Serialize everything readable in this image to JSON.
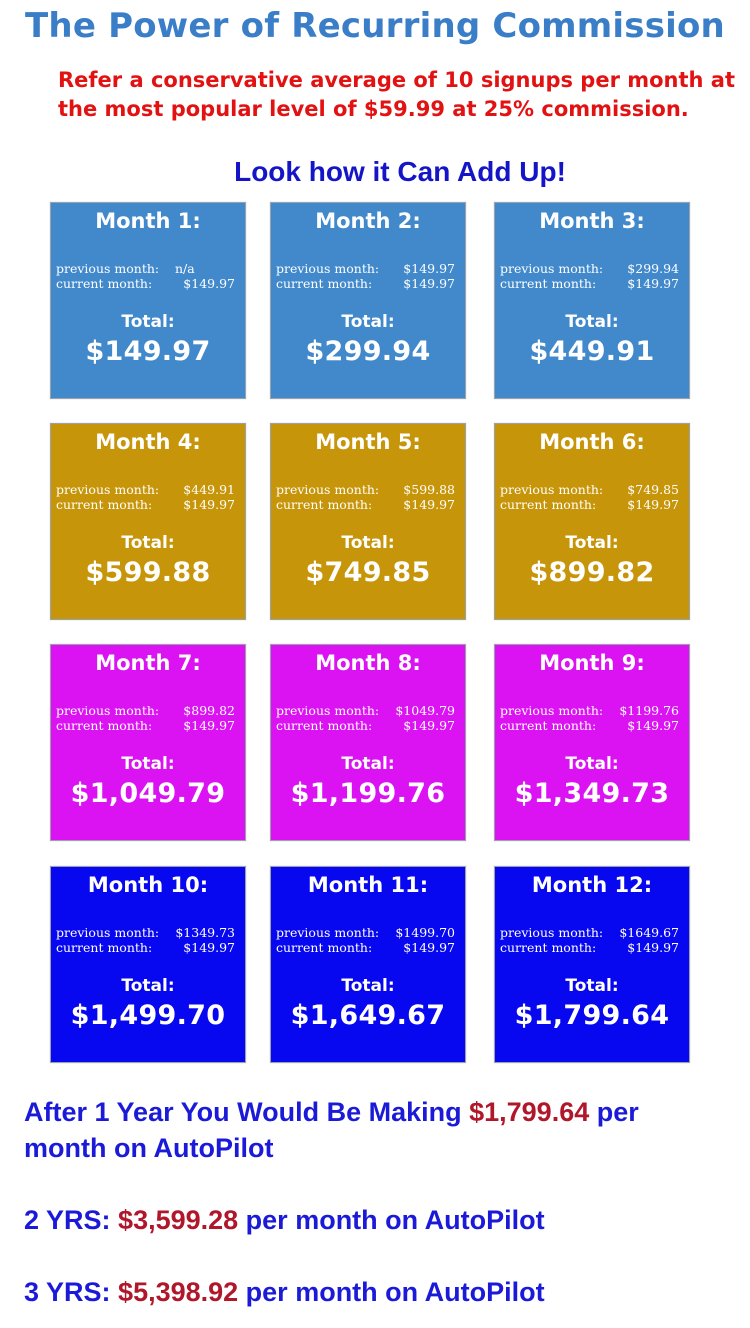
{
  "header": {
    "title": "The Power of Recurring Commission",
    "subtitle_line1": "Refer a conservative average of 10 signups per month at",
    "subtitle_line2": "the most popular level of $59.99 at 25% commission.",
    "tagline": "Look how it Can Add Up!"
  },
  "labels": {
    "previous": "previous month:",
    "current": "current month:",
    "total": "Total:"
  },
  "colors": {
    "row1": "#4289cc",
    "row2": "#c79509",
    "row3": "#db13f2",
    "row4": "#0808f0"
  },
  "months": [
    {
      "label": "Month 1:",
      "previous": "n/a",
      "current": "$149.97",
      "total": "$149.97"
    },
    {
      "label": "Month 2:",
      "previous": "$149.97",
      "current": "$149.97",
      "total": "$299.94"
    },
    {
      "label": "Month 3:",
      "previous": "$299.94",
      "current": "$149.97",
      "total": "$449.91"
    },
    {
      "label": "Month 4:",
      "previous": "$449.91",
      "current": "$149.97",
      "total": "$599.88"
    },
    {
      "label": "Month 5:",
      "previous": "$599.88",
      "current": "$149.97",
      "total": "$749.85"
    },
    {
      "label": "Month 6:",
      "previous": "$749.85",
      "current": "$149.97",
      "total": "$899.82"
    },
    {
      "label": "Month 7:",
      "previous": "$899.82",
      "current": "$149.97",
      "total": "$1,049.79"
    },
    {
      "label": "Month 8:",
      "previous": "$1049.79",
      "current": "$149.97",
      "total": "$1,199.76"
    },
    {
      "label": "Month 9:",
      "previous": "$1199.76",
      "current": "$149.97",
      "total": "$1,349.73"
    },
    {
      "label": "Month 10:",
      "previous": "$1349.73",
      "current": "$149.97",
      "total": "$1,499.70"
    },
    {
      "label": "Month 11:",
      "previous": "$1499.70",
      "current": "$149.97",
      "total": "$1,649.67"
    },
    {
      "label": "Month 12:",
      "previous": "$1649.67",
      "current": "$149.97",
      "total": "$1,799.64"
    }
  ],
  "footer": {
    "year1_pre": "After 1 Year You Would Be Making ",
    "year1_amount": "$1,799.64",
    "year1_post1": " per",
    "year1_post2": "month on AutoPilot",
    "year2_pre": "2 YRS: ",
    "year2_amount": "$3,599.28",
    "year2_post": " per month on AutoPilot",
    "year3_pre": "3 YRS: ",
    "year3_amount": "$5,398.92",
    "year3_post": " per month on AutoPilot"
  }
}
